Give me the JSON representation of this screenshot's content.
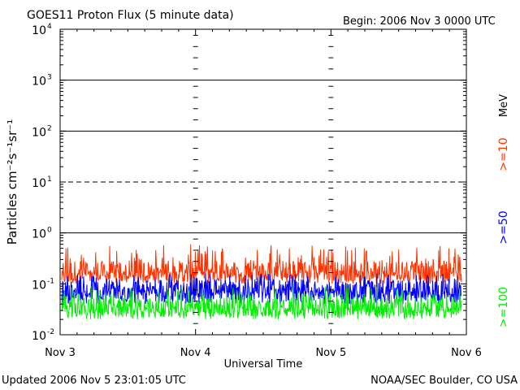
{
  "header": {
    "title": "GOES11 Proton Flux (5 minute data)",
    "begin": "Begin: 2006 Nov 3 0000 UTC"
  },
  "footer": {
    "updated": "Updated 2006 Nov  5 23:01:05 UTC",
    "credit": "NOAA/SEC Boulder, CO USA"
  },
  "chart_data": {
    "type": "line",
    "title": "GOES11 Proton Flux (5 minute data)",
    "xlabel": "Universal Time",
    "ylabel": "Particles cm⁻²s⁻¹sr⁻¹",
    "y_scale": "log",
    "ylim": [
      0.01,
      10000
    ],
    "xlim": [
      "2006-11-03T00:00Z",
      "2006-11-06T00:00Z"
    ],
    "x_ticks": [
      "Nov 3",
      "Nov 4",
      "Nov 5",
      "Nov 6"
    ],
    "y_ticks": [
      {
        "base": "10",
        "exp": "-2",
        "value": 0.01
      },
      {
        "base": "10",
        "exp": "-1",
        "value": 0.1
      },
      {
        "base": "10",
        "exp": "0",
        "value": 1
      },
      {
        "base": "10",
        "exp": "1",
        "value": 10
      },
      {
        "base": "10",
        "exp": "2",
        "value": 100
      },
      {
        "base": "10",
        "exp": "3",
        "value": 1000
      },
      {
        "base": "10",
        "exp": "4",
        "value": 10000
      }
    ],
    "reference_lines": [
      {
        "value": 10,
        "style": "dashed"
      },
      {
        "value": 1000,
        "style": "solid"
      },
      {
        "value": 100,
        "style": "solid"
      },
      {
        "value": 1,
        "style": "solid"
      }
    ],
    "legend_unit": "MeV",
    "series": [
      {
        "name": ">=10",
        "color": "#ff3300",
        "level": 0.18,
        "min": 0.1,
        "max": 0.6
      },
      {
        "name": ">=50",
        "color": "#0000ff",
        "level": 0.075,
        "min": 0.04,
        "max": 0.16
      },
      {
        "name": ">=100",
        "color": "#00ee00",
        "level": 0.035,
        "min": 0.02,
        "max": 0.09
      }
    ]
  }
}
